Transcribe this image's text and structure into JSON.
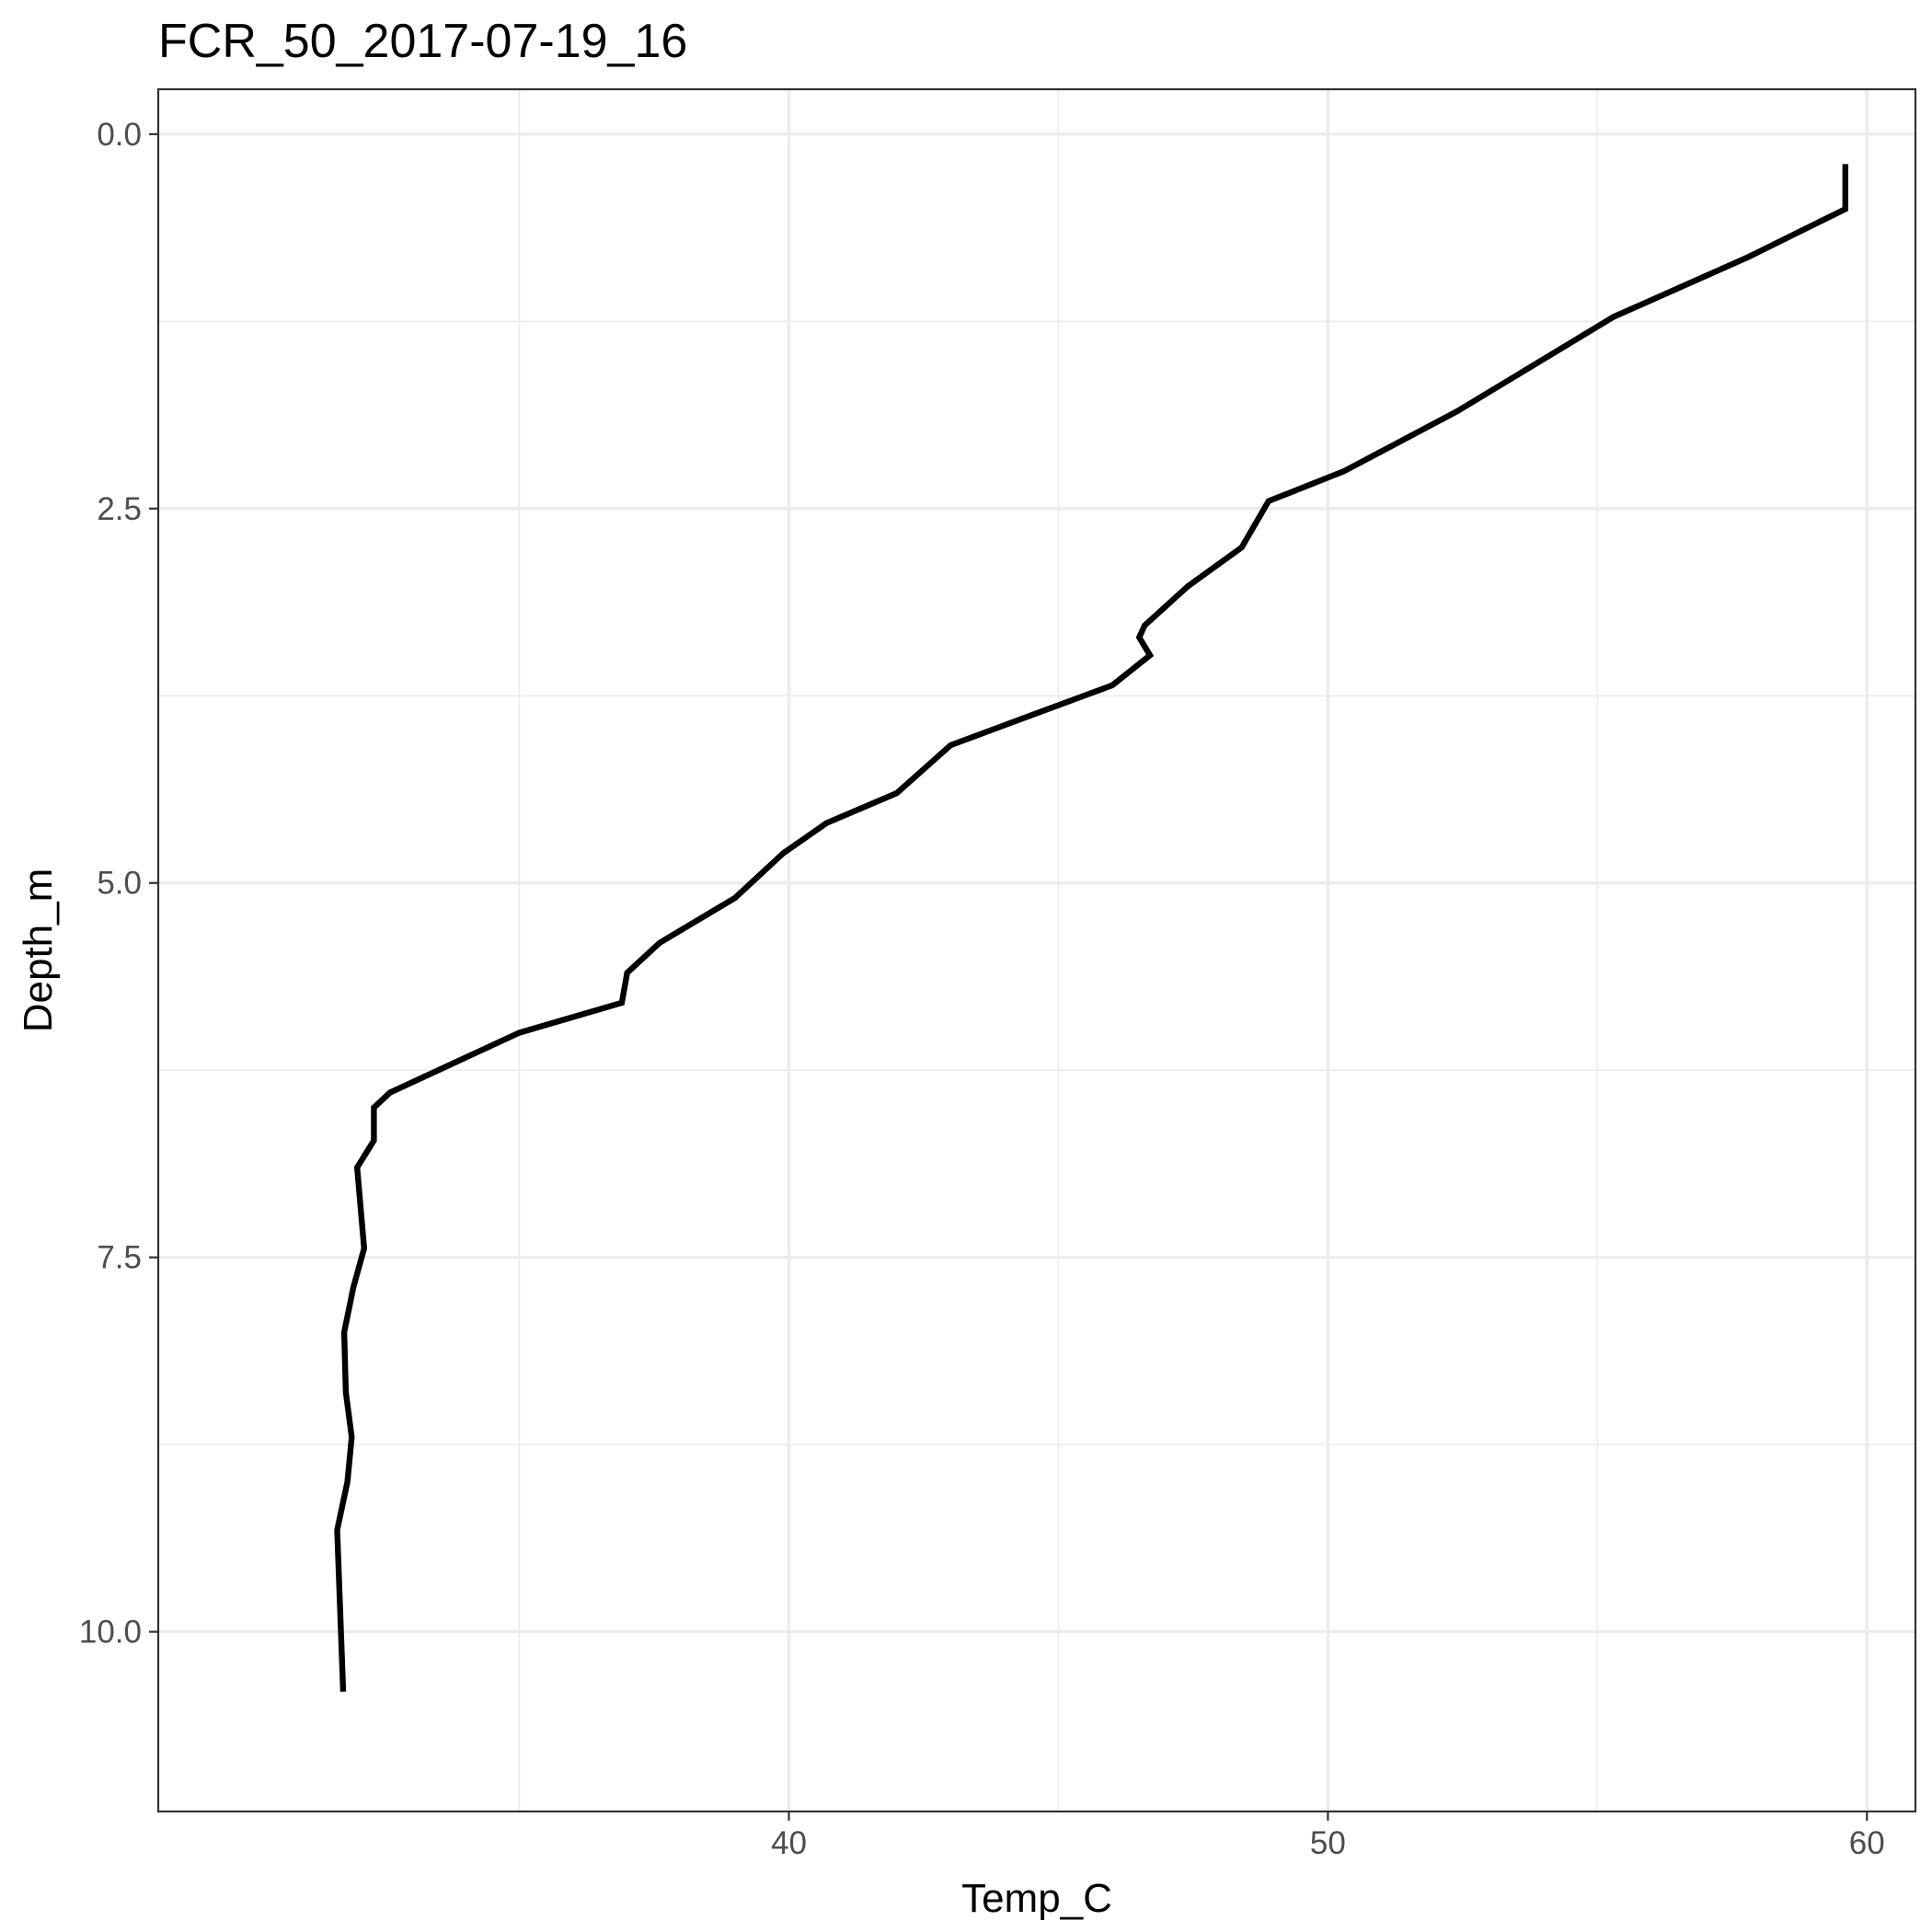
{
  "chart_data": {
    "type": "line",
    "title": "FCR_50_2017-07-19_16",
    "xlabel": "Temp_C",
    "ylabel": "Depth_m",
    "xlim": [
      28.3,
      60.9
    ],
    "ylim": [
      -0.3,
      11.2
    ],
    "y_reversed": true,
    "x_major_ticks": [
      40,
      50,
      60
    ],
    "x_tick_labels": [
      "40",
      "50",
      "60"
    ],
    "x_minor_ticks": [
      35,
      45,
      55
    ],
    "y_major_ticks": [
      0,
      2.5,
      5,
      7.5,
      10
    ],
    "y_tick_labels": [
      "0.0",
      "2.5",
      "5.0",
      "7.5",
      "10.0"
    ],
    "y_minor_ticks": [
      1.25,
      3.75,
      6.25,
      8.75
    ],
    "grid": true,
    "series": [
      {
        "color": "#000000",
        "x": [
          59.6,
          59.6,
          57.8,
          55.3,
          52.4,
          50.3,
          48.9,
          48.4,
          47.4,
          46.6,
          46.5,
          46.7,
          46.0,
          44.5,
          43.0,
          42.0,
          40.7,
          39.9,
          39.0,
          37.6,
          37.0,
          36.9,
          35.0,
          32.6,
          32.3,
          32.3,
          31.99,
          32.12,
          31.92,
          31.75,
          31.78,
          31.89,
          31.81,
          31.62,
          31.72,
          31.73
        ],
        "y": [
          0.2,
          0.5,
          0.82,
          1.22,
          1.85,
          2.25,
          2.45,
          2.76,
          3.02,
          3.28,
          3.36,
          3.48,
          3.68,
          3.88,
          4.08,
          4.4,
          4.6,
          4.8,
          5.1,
          5.4,
          5.6,
          5.8,
          6.0,
          6.4,
          6.5,
          6.72,
          6.9,
          7.44,
          7.7,
          8.0,
          8.4,
          8.7,
          9.0,
          9.32,
          10.3,
          10.4
        ]
      }
    ]
  }
}
